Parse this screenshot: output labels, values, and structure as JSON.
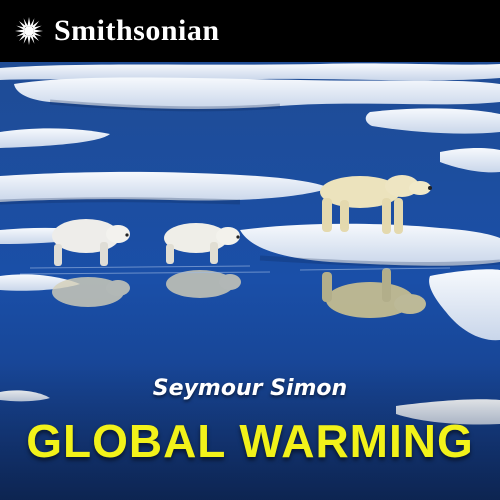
{
  "cover": {
    "brand": "Smithsonian",
    "author": "Seymour Simon",
    "title": "GLOBAL WARMING"
  },
  "icons": {
    "brand_logo": "sunburst-icon"
  },
  "colors": {
    "title": "#f2f21a",
    "author": "#ffffff",
    "water": "#1e4fa0",
    "ice": "#eef3fa",
    "background": "#000000"
  }
}
